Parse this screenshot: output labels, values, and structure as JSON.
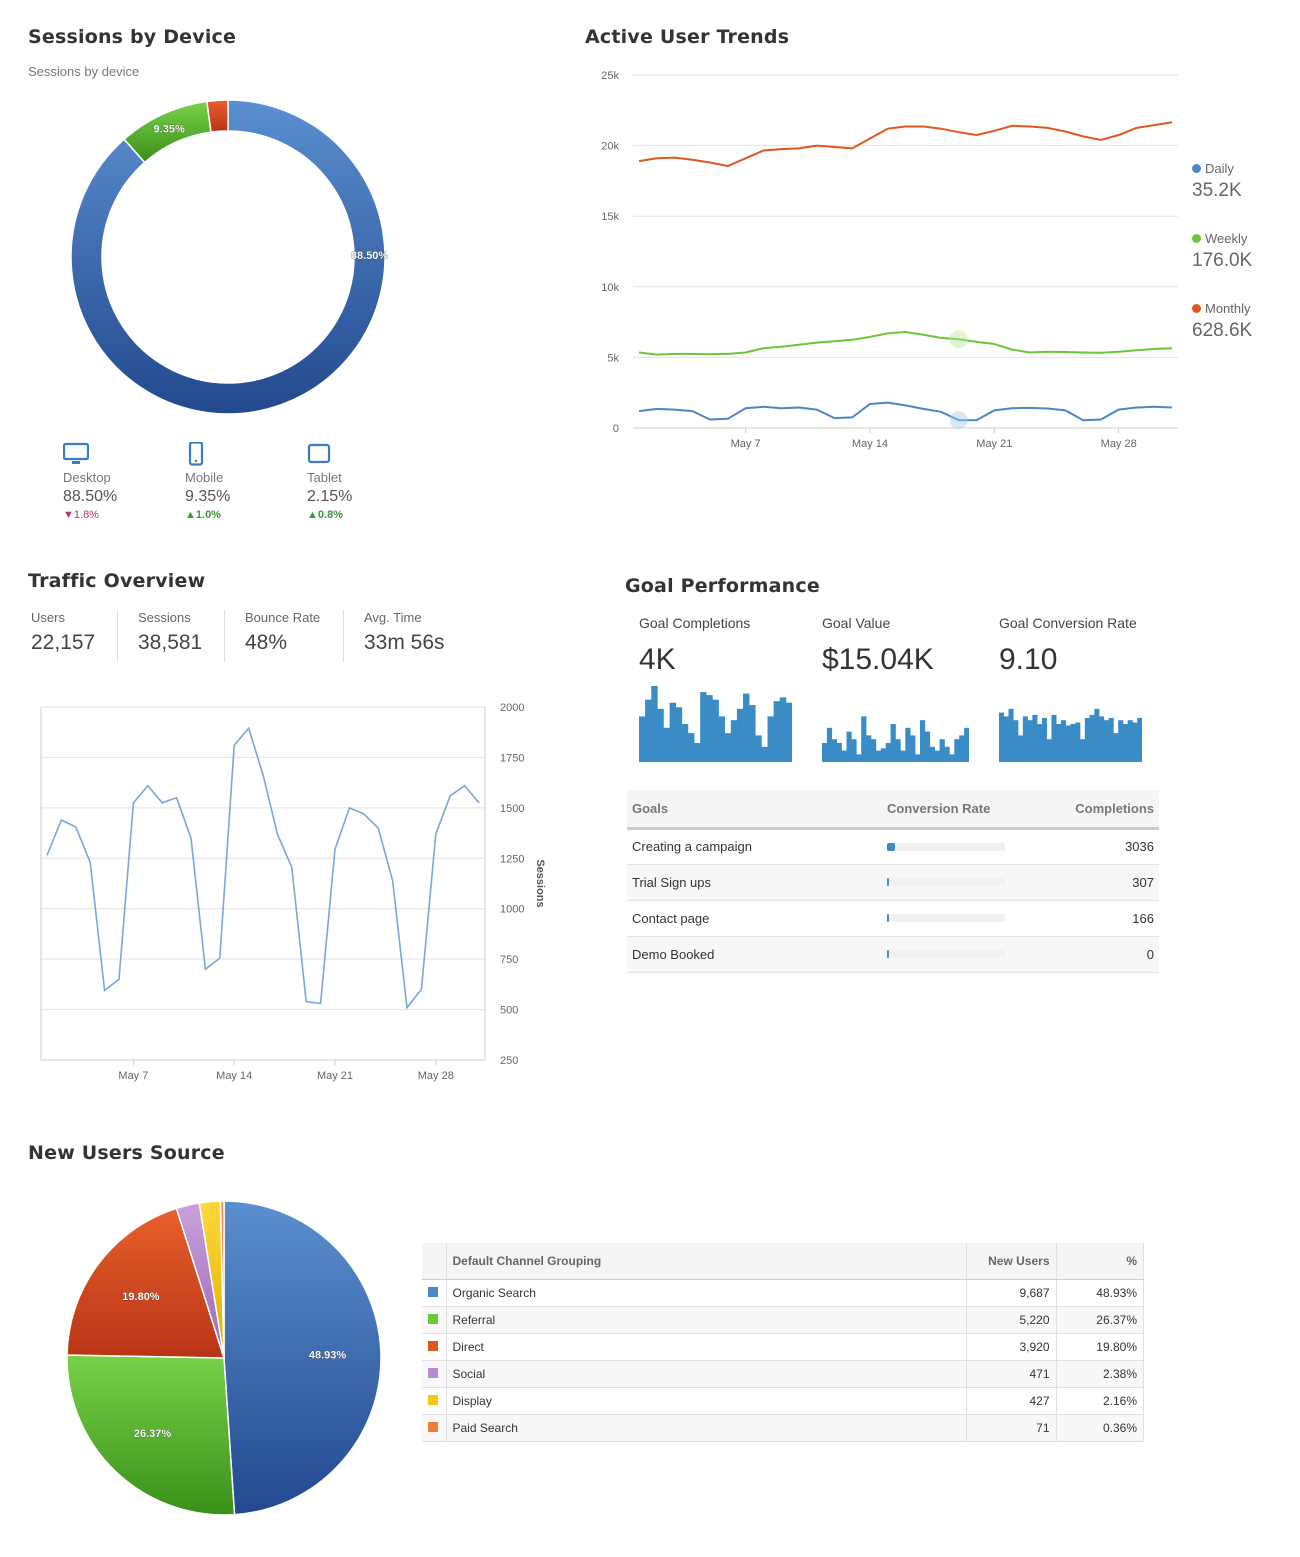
{
  "sessions_by_device": {
    "title": "Sessions by Device",
    "subtitle": "Sessions by device",
    "devices": [
      {
        "name": "Desktop",
        "percent": "88.50%",
        "change": "1.8%",
        "direction": "down",
        "icon": "desktop-icon"
      },
      {
        "name": "Mobile",
        "percent": "9.35%",
        "change": "1.0%",
        "direction": "up",
        "icon": "mobile-icon"
      },
      {
        "name": "Tablet",
        "percent": "2.15%",
        "change": "0.8%",
        "direction": "up",
        "icon": "tablet-icon"
      }
    ]
  },
  "active_user_trends": {
    "title": "Active User Trends",
    "legend": [
      {
        "name": "Daily",
        "value": "35.2K",
        "color": "#4a86c8"
      },
      {
        "name": "Weekly",
        "value": "176.0K",
        "color": "#6ac73a"
      },
      {
        "name": "Monthly",
        "value": "628.6K",
        "color": "#e0581e"
      }
    ]
  },
  "traffic_overview": {
    "title": "Traffic Overview",
    "kpis": [
      {
        "label": "Users",
        "value": "22,157"
      },
      {
        "label": "Sessions",
        "value": "38,581"
      },
      {
        "label": "Bounce Rate",
        "value": "48%"
      },
      {
        "label": "Avg. Time",
        "value": "33m 56s"
      }
    ]
  },
  "goal_performance": {
    "title": "Goal Performance",
    "metrics": [
      {
        "label": "Goal Completions",
        "value": "4K"
      },
      {
        "label": "Goal Value",
        "value": "$15.04K"
      },
      {
        "label": "Goal Conversion Rate",
        "value": "9.10"
      }
    ],
    "table": {
      "headers": [
        "Goals",
        "Conversion Rate",
        "Completions"
      ],
      "rows": [
        {
          "goal": "Creating a campaign",
          "rate": 0.07,
          "completions": "3036"
        },
        {
          "goal": "Trial Sign ups",
          "rate": 0.005,
          "completions": "307"
        },
        {
          "goal": "Contact page",
          "rate": 0.005,
          "completions": "166"
        },
        {
          "goal": "Demo Booked",
          "rate": 0.005,
          "completions": "0"
        }
      ]
    }
  },
  "new_users_source": {
    "title": "New Users Source",
    "table": {
      "headers": [
        "Default Channel Grouping",
        "New Users",
        "%"
      ],
      "rows": [
        {
          "channel": "Organic Search",
          "users": "9,687",
          "pct": "48.93%",
          "color": "#4a86c8"
        },
        {
          "channel": "Referral",
          "users": "5,220",
          "pct": "26.37%",
          "color": "#6ac73a"
        },
        {
          "channel": "Direct",
          "users": "3,920",
          "pct": "19.80%",
          "color": "#e0581e"
        },
        {
          "channel": "Social",
          "users": "471",
          "pct": "2.38%",
          "color": "#b98ad0"
        },
        {
          "channel": "Display",
          "users": "427",
          "pct": "2.16%",
          "color": "#f2c811"
        },
        {
          "channel": "Paid Search",
          "users": "71",
          "pct": "0.36%",
          "color": "#f07c3c"
        }
      ]
    }
  },
  "chart_data": [
    {
      "type": "pie",
      "variant": "donut",
      "labels": [
        "Desktop",
        "Mobile",
        "Tablet"
      ],
      "values": [
        88.5,
        9.35,
        2.15
      ],
      "colors": [
        "#2f63a8",
        "#4aa52c",
        "#d6461a"
      ],
      "data_labels": [
        "88.50%",
        "9.35%",
        ""
      ]
    },
    {
      "type": "line",
      "x_ticks": [
        "May 7",
        "May 14",
        "May 21",
        "May 28"
      ],
      "y_ticks": [
        "0",
        "5k",
        "10k",
        "15k",
        "20k",
        "25k"
      ],
      "ylim": [
        0,
        25000
      ],
      "grid": true,
      "series": [
        {
          "name": "Monthly",
          "color": "#e0581e",
          "values": [
            18900,
            19100,
            19150,
            19000,
            18800,
            18550,
            19100,
            19650,
            19750,
            19800,
            20000,
            19900,
            19800,
            20500,
            21200,
            21350,
            21350,
            21200,
            20950,
            20750,
            21050,
            21400,
            21350,
            21250,
            21000,
            20650,
            20400,
            20750,
            21250,
            21450,
            21650
          ]
        },
        {
          "name": "Weekly",
          "color": "#6ac73a",
          "values": [
            5350,
            5200,
            5250,
            5250,
            5230,
            5250,
            5350,
            5650,
            5750,
            5900,
            6050,
            6150,
            6250,
            6450,
            6700,
            6800,
            6600,
            6380,
            6280,
            6100,
            5950,
            5550,
            5350,
            5400,
            5380,
            5350,
            5330,
            5400,
            5500,
            5600,
            5650
          ]
        },
        {
          "name": "Daily",
          "color": "#4a86c8",
          "values": [
            1200,
            1350,
            1300,
            1200,
            600,
            650,
            1400,
            1500,
            1400,
            1450,
            1300,
            700,
            750,
            1700,
            1800,
            1600,
            1350,
            1150,
            550,
            560,
            1250,
            1400,
            1420,
            1380,
            1250,
            550,
            600,
            1300,
            1450,
            1500,
            1450
          ]
        }
      ]
    },
    {
      "type": "line",
      "x_ticks": [
        "May 7",
        "May 14",
        "May 21",
        "May 28"
      ],
      "y_ticks": [
        "250",
        "500",
        "750",
        "1000",
        "1250",
        "1500",
        "1750",
        "2000"
      ],
      "ylim": [
        250,
        2000
      ],
      "ylabel": "Sessions",
      "grid": true,
      "series": [
        {
          "color": "#7aa6dc",
          "values": [
            1265,
            1440,
            1405,
            1230,
            595,
            650,
            1525,
            1610,
            1525,
            1550,
            1350,
            700,
            755,
            1810,
            1895,
            1665,
            1370,
            1205,
            540,
            530,
            1295,
            1500,
            1470,
            1400,
            1140,
            510,
            600,
            1370,
            1560,
            1610,
            1525
          ]
        }
      ]
    },
    {
      "type": "bar",
      "variant": "sparkline",
      "label": "Goal Completions",
      "color": "#3a8cc7",
      "values": [
        0.6,
        0.82,
        1.0,
        0.7,
        0.45,
        0.78,
        0.72,
        0.5,
        0.38,
        0.25,
        0.92,
        0.88,
        0.82,
        0.6,
        0.38,
        0.55,
        0.7,
        0.9,
        0.75,
        0.35,
        0.2,
        0.6,
        0.8,
        0.85,
        0.78
      ]
    },
    {
      "type": "bar",
      "variant": "sparkline",
      "label": "Goal Value",
      "color": "#3a8cc7",
      "values": [
        0.25,
        0.45,
        0.3,
        0.25,
        0.15,
        0.4,
        0.3,
        0.1,
        0.6,
        0.35,
        0.3,
        0.15,
        0.18,
        0.25,
        0.5,
        0.3,
        0.15,
        0.45,
        0.35,
        0.1,
        0.55,
        0.4,
        0.2,
        0.15,
        0.3,
        0.2,
        0.1,
        0.3,
        0.35,
        0.45
      ]
    },
    {
      "type": "bar",
      "variant": "sparkline",
      "label": "Goal Conversion Rate",
      "color": "#3a8cc7",
      "values": [
        0.65,
        0.6,
        0.7,
        0.55,
        0.35,
        0.6,
        0.55,
        0.62,
        0.5,
        0.58,
        0.3,
        0.62,
        0.5,
        0.55,
        0.48,
        0.5,
        0.52,
        0.3,
        0.58,
        0.62,
        0.7,
        0.6,
        0.55,
        0.58,
        0.38,
        0.55,
        0.5,
        0.55,
        0.52,
        0.58
      ]
    },
    {
      "type": "pie",
      "labels": [
        "Organic Search",
        "Referral",
        "Direct",
        "Social",
        "Display",
        "Paid Search"
      ],
      "values": [
        48.93,
        26.37,
        19.8,
        2.38,
        2.16,
        0.36
      ],
      "colors": [
        "#2f63a8",
        "#4aa52c",
        "#c8401a",
        "#b98ad0",
        "#f2c811",
        "#f07c3c"
      ],
      "data_labels": [
        "48.93%",
        "26.37%",
        "19.80%",
        "",
        "",
        ""
      ]
    }
  ]
}
